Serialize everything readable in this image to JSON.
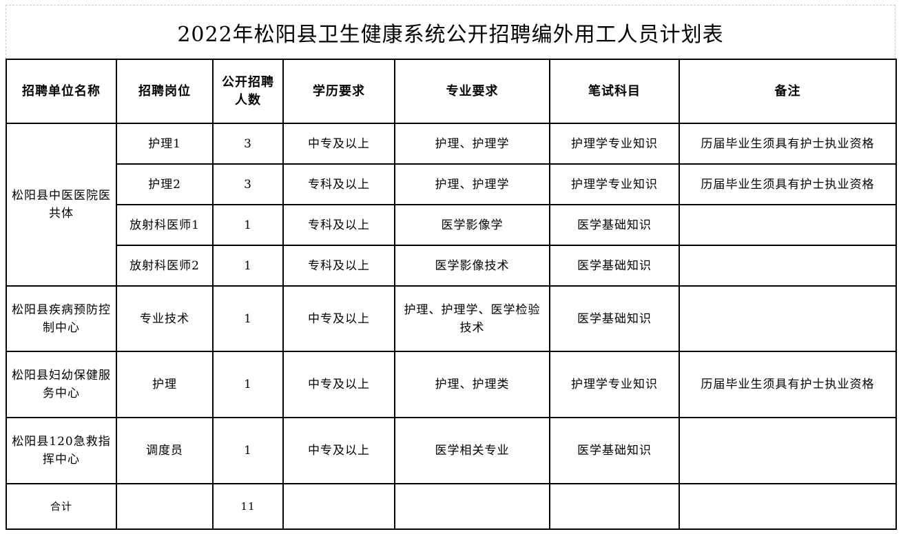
{
  "title": "2022年松阳县卫生健康系统公开招聘编外用工人员计划表",
  "headers": [
    "招聘单位名称",
    "招聘岗位",
    "公开招聘人数",
    "学历要求",
    "专业要求",
    "笔试科目",
    "备注"
  ],
  "rows": [
    {
      "unit": "松阳县中医医院医共体",
      "position": "护理1",
      "count": "3",
      "education": "中专及以上",
      "major": "护理、护理学",
      "exam": "护理学专业知识",
      "note": "历届毕业生须具有护士执业资格"
    },
    {
      "unit": "",
      "position": "护理2",
      "count": "3",
      "education": "专科及以上",
      "major": "护理、护理学",
      "exam": "护理学专业知识",
      "note": "历届毕业生须具有护士执业资格"
    },
    {
      "unit": "",
      "position": "放射科医师1",
      "count": "1",
      "education": "专科及以上",
      "major": "医学影像学",
      "exam": "医学基础知识",
      "note": ""
    },
    {
      "unit": "",
      "position": "放射科医师2",
      "count": "1",
      "education": "专科及以上",
      "major": "医学影像技术",
      "exam": "医学基础知识",
      "note": ""
    },
    {
      "unit": "松阳县疾病预防控制中心",
      "position": "专业技术",
      "count": "1",
      "education": "中专及以上",
      "major": "护理、护理学、医学检验技术",
      "exam": "医学基础知识",
      "note": ""
    },
    {
      "unit": "松阳县妇幼保健服务中心",
      "position": "护理",
      "count": "1",
      "education": "中专及以上",
      "major": "护理、护理类",
      "exam": "护理学专业知识",
      "note": "历届毕业生须具有护士执业资格"
    },
    {
      "unit": "松阳县120急救指挥中心",
      "position": "调度员",
      "count": "1",
      "education": "中专及以上",
      "major": "医学相关专业",
      "exam": "医学基础知识",
      "note": ""
    }
  ],
  "total": {
    "label": "合计",
    "count": "11"
  }
}
